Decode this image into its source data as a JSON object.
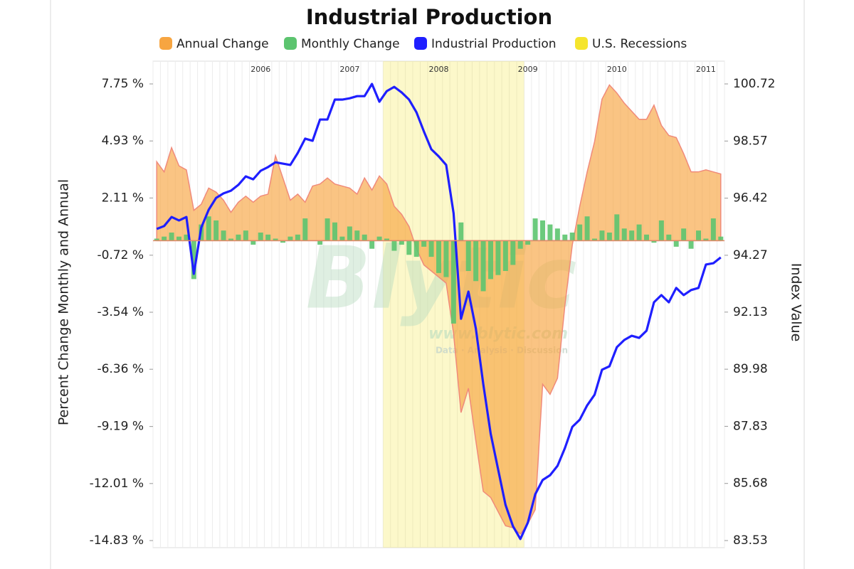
{
  "chart_data": {
    "type": "combo",
    "title": "Industrial Production",
    "ylabel": "Percent Change Monthly and Annual",
    "y2label": "Index Value",
    "watermark": [
      "Blytic",
      "www.blytic.com",
      "Data · Analysis · Discussion"
    ],
    "categories": [
      null,
      null,
      null,
      null,
      null,
      null,
      null,
      null,
      null,
      null,
      null,
      null,
      null,
      null,
      "2006",
      null,
      null,
      null,
      null,
      null,
      null,
      null,
      null,
      null,
      null,
      null,
      "2007",
      null,
      null,
      null,
      null,
      null,
      null,
      null,
      null,
      null,
      null,
      null,
      "2008",
      null,
      null,
      null,
      null,
      null,
      null,
      null,
      null,
      null,
      null,
      null,
      "2009",
      null,
      null,
      null,
      null,
      null,
      null,
      null,
      null,
      null,
      null,
      null,
      "2010",
      null,
      null,
      null,
      null,
      null,
      null,
      null,
      null,
      null,
      null,
      null,
      "2011",
      null,
      null
    ],
    "ylim": [
      -14.83,
      7.75
    ],
    "yticks": [
      {
        "value": 7.75,
        "label": "7.75 %"
      },
      {
        "value": 4.93,
        "label": "4.93 %"
      },
      {
        "value": 2.11,
        "label": "2.11 %"
      },
      {
        "value": -0.72,
        "label": "-0.72 %"
      },
      {
        "value": -3.54,
        "label": "-3.54 %"
      },
      {
        "value": -6.36,
        "label": "-6.36 %"
      },
      {
        "value": -9.19,
        "label": "-9.19 %"
      },
      {
        "value": -12.01,
        "label": "-12.01 %"
      },
      {
        "value": -14.83,
        "label": "-14.83 %"
      }
    ],
    "y2lim": [
      83.53,
      100.72
    ],
    "y2ticks": [
      100.72,
      98.57,
      96.42,
      94.27,
      92.13,
      89.98,
      87.83,
      85.68,
      83.53
    ],
    "series": [
      {
        "name": "Annual Change",
        "type": "area",
        "color": "#f7a541",
        "values": [
          3.9,
          3.4,
          4.6,
          3.7,
          3.5,
          1.5,
          1.8,
          2.6,
          2.4,
          2.0,
          1.4,
          1.9,
          2.2,
          1.9,
          2.2,
          2.3,
          4.2,
          3.1,
          2.0,
          2.3,
          1.9,
          2.7,
          2.8,
          3.1,
          2.8,
          2.7,
          2.6,
          2.3,
          3.1,
          2.5,
          3.2,
          2.8,
          1.7,
          1.3,
          0.7,
          -0.4,
          -1.2,
          -1.5,
          -1.8,
          -2.1,
          -4.6,
          -8.5,
          -7.3,
          -9.9,
          -12.4,
          -12.7,
          -13.4,
          -14.1,
          -14.2,
          -14.5,
          -14.0,
          -13.3,
          -7.1,
          -7.6,
          -6.8,
          -3.2,
          -0.2,
          1.7,
          3.4,
          4.9,
          7.0,
          7.7,
          7.3,
          6.8,
          6.4,
          6.0,
          6.0,
          6.7,
          5.7,
          5.2,
          5.1,
          4.3,
          3.4,
          3.4,
          3.5,
          3.4,
          3.3
        ]
      },
      {
        "name": "Monthly Change",
        "type": "bar",
        "color": "#5cc46f",
        "values": [
          0.1,
          0.2,
          0.4,
          0.2,
          0.3,
          -1.9,
          0.8,
          1.2,
          1.0,
          0.5,
          0.1,
          0.3,
          0.5,
          -0.2,
          0.4,
          0.3,
          0.1,
          -0.1,
          0.2,
          0.3,
          1.1,
          0.0,
          -0.2,
          1.1,
          0.9,
          0.2,
          0.7,
          0.5,
          0.3,
          -0.4,
          0.2,
          0.1,
          -0.5,
          -0.2,
          -0.7,
          -0.8,
          -0.3,
          -0.8,
          -1.6,
          -1.8,
          -4.1,
          0.9,
          -1.5,
          -2.0,
          -2.5,
          -1.9,
          -1.7,
          -1.5,
          -1.2,
          -0.4,
          -0.2,
          1.1,
          1.0,
          0.8,
          0.6,
          0.3,
          0.4,
          0.8,
          1.2,
          0.1,
          0.5,
          0.4,
          1.3,
          0.6,
          0.5,
          0.8,
          0.3,
          -0.1,
          1.0,
          0.3,
          -0.3,
          0.6,
          -0.4,
          0.5,
          0.1,
          1.1,
          0.2
        ]
      },
      {
        "name": "Industrial Production",
        "type": "line",
        "axis": "y2",
        "color": "#1f1fff",
        "values": [
          95.26,
          95.37,
          95.71,
          95.58,
          95.71,
          93.57,
          95.31,
          95.98,
          96.43,
          96.6,
          96.7,
          96.92,
          97.24,
          97.13,
          97.45,
          97.59,
          97.77,
          97.72,
          97.67,
          98.12,
          98.66,
          98.58,
          99.38,
          99.38,
          100.13,
          100.13,
          100.18,
          100.26,
          100.26,
          100.72,
          100.05,
          100.45,
          100.61,
          100.4,
          100.13,
          99.65,
          98.93,
          98.26,
          97.99,
          97.67,
          95.85,
          91.88,
          92.9,
          91.51,
          89.42,
          87.55,
          86.21,
          84.87,
          84.07,
          83.59,
          84.2,
          85.27,
          85.81,
          85.99,
          86.34,
          87.01,
          87.81,
          88.08,
          88.62,
          89.02,
          89.96,
          90.09,
          90.81,
          91.08,
          91.24,
          91.16,
          91.43,
          92.5,
          92.77,
          92.5,
          93.04,
          92.77,
          92.96,
          93.04,
          93.92,
          93.97,
          94.19
        ]
      }
    ],
    "recession": {
      "name": "U.S. Recessions",
      "color": "#f5e52d",
      "span": [
        31,
        49
      ]
    }
  }
}
